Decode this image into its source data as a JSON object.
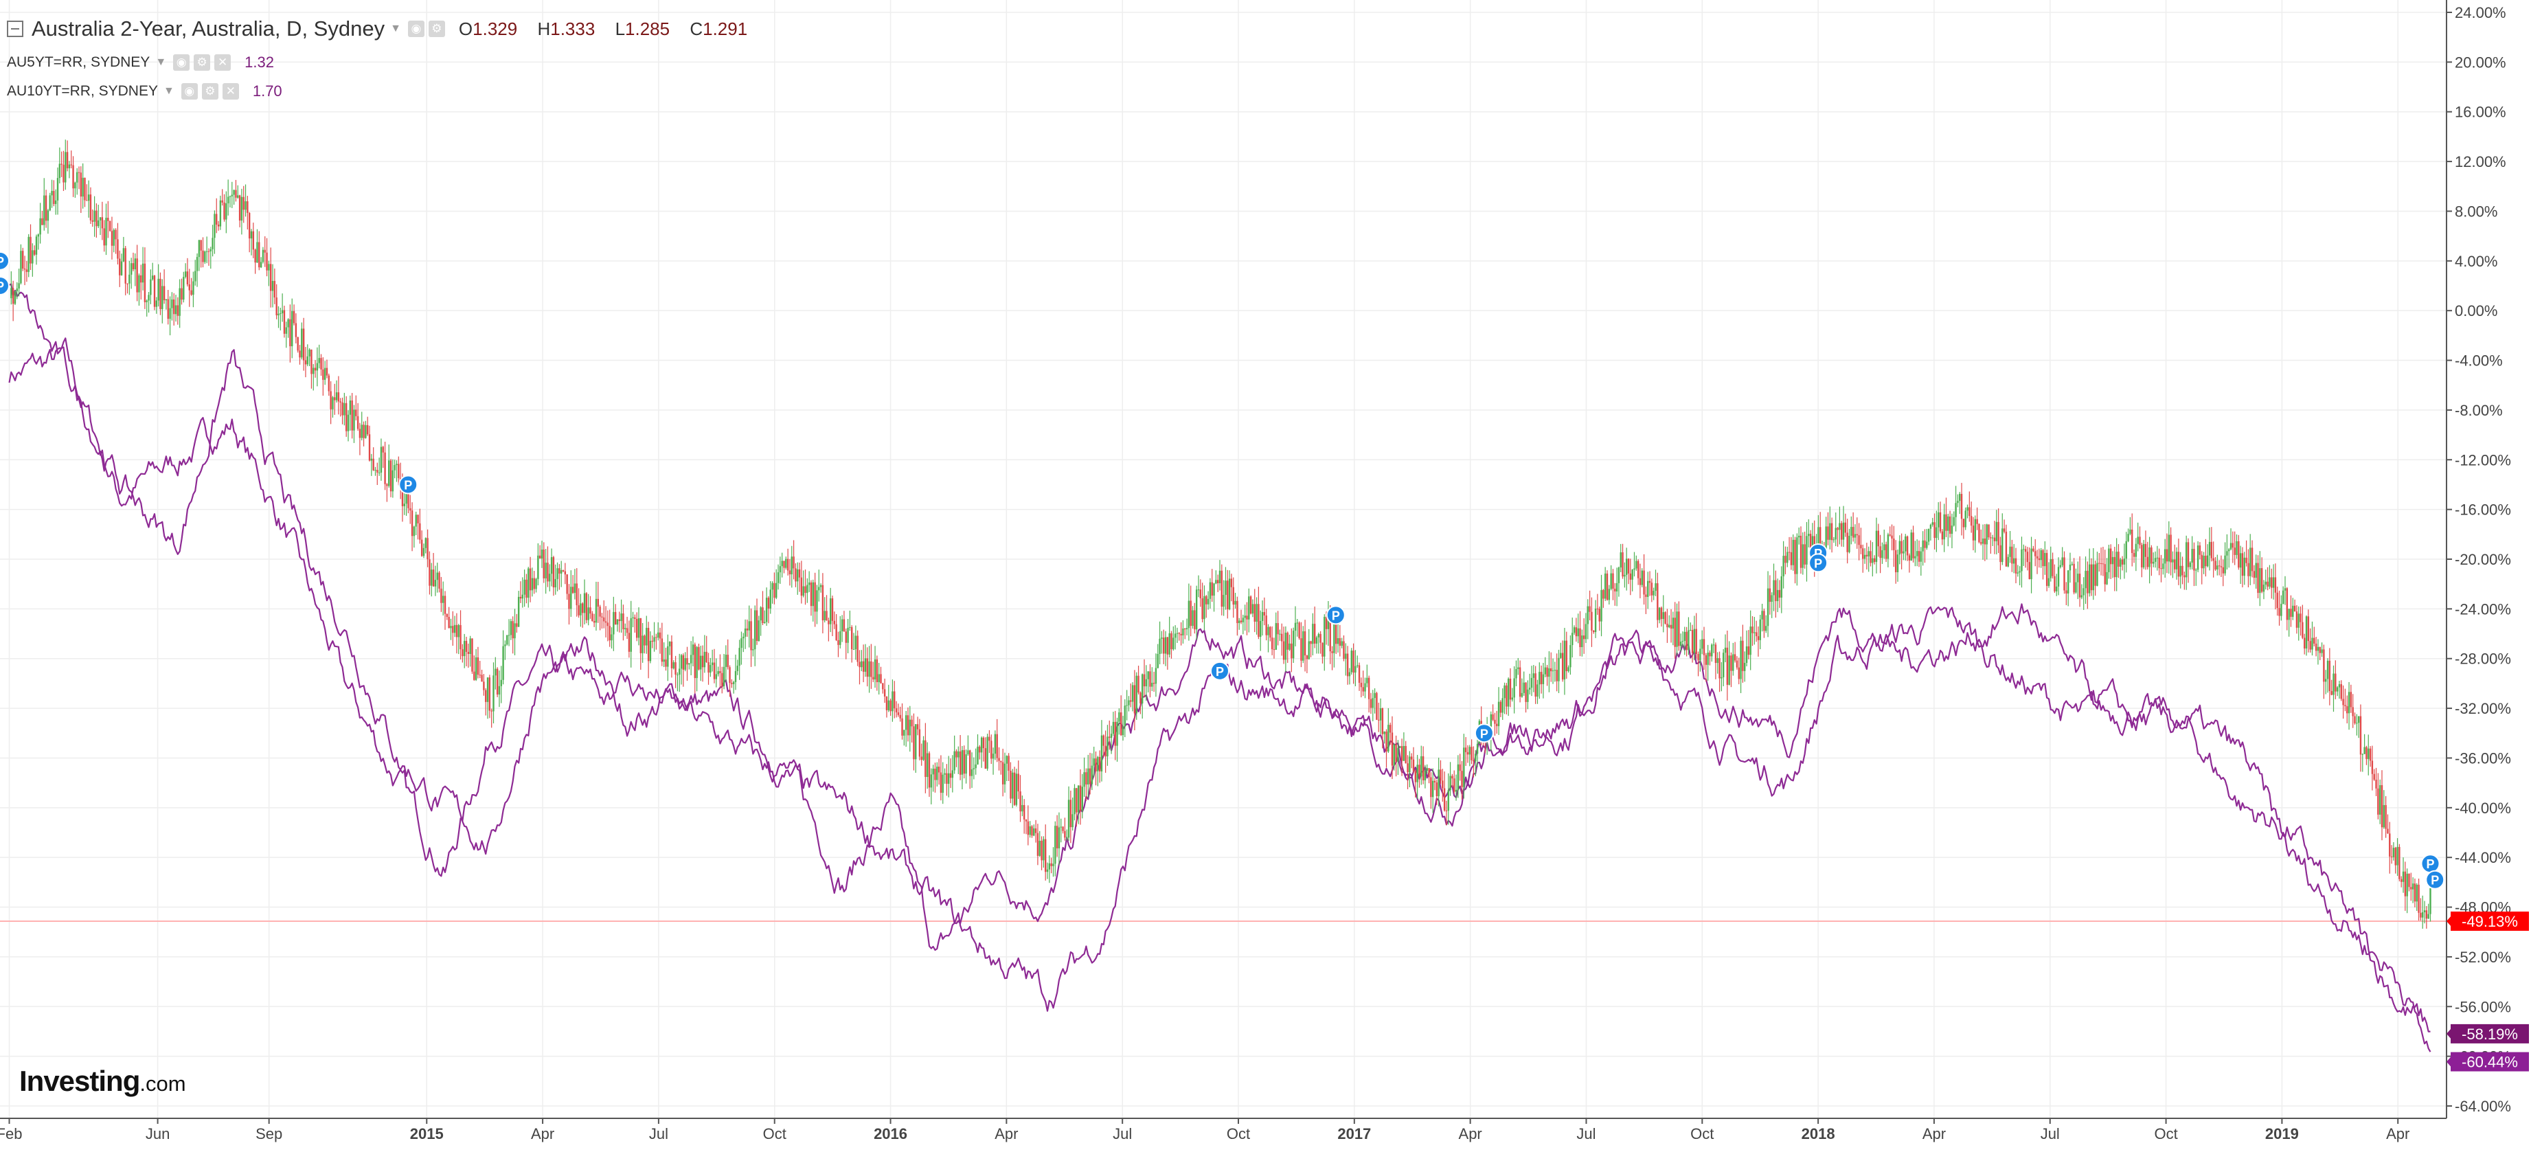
{
  "header": {
    "title": "Australia 2-Year, Australia, D, Sydney",
    "ohlc": [
      {
        "label": "O",
        "value": "1.329"
      },
      {
        "label": "H",
        "value": "1.333"
      },
      {
        "label": "L",
        "value": "1.285"
      },
      {
        "label": "C",
        "value": "1.291"
      }
    ],
    "series": [
      {
        "name": "AU5YT=RR, SYDNEY",
        "value": "1.32",
        "color": "#7b1c7b"
      },
      {
        "name": "AU10YT=RR, SYDNEY",
        "value": "1.70",
        "color": "#7b1c7b"
      }
    ]
  },
  "logo": {
    "brand": "Investing",
    "suffix": ".com"
  },
  "colors": {
    "up_candle": "#4caf50",
    "down_candle": "#e04848",
    "compare_line": "#8e2a94",
    "last_price_line": "#ffb2b2",
    "last_price_badge": "#ff0000",
    "compare_badge_1": "#7a1570",
    "compare_badge_2": "#8d1f96",
    "marker": "#1e88e5",
    "grid": "#eeeeee",
    "axis": "#555555"
  },
  "chart_data": {
    "type": "line",
    "x_ticks": [
      "Feb",
      "Jun",
      "Sep",
      "2015",
      "Apr",
      "Jul",
      "Oct",
      "2016",
      "Apr",
      "Jul",
      "Oct",
      "2017",
      "Apr",
      "Jul",
      "Oct",
      "2018",
      "Apr",
      "Jul",
      "Oct",
      "2019",
      "Apr"
    ],
    "x_ticks_bold": [
      "2015",
      "2016",
      "2017",
      "2018",
      "2019"
    ],
    "y_ticks": [
      "24.00%",
      "20.00%",
      "16.00%",
      "12.00%",
      "8.00%",
      "4.00%",
      "0.00%",
      "-4.00%",
      "-8.00%",
      "-12.00%",
      "-16.00%",
      "-20.00%",
      "-24.00%",
      "-28.00%",
      "-32.00%",
      "-36.00%",
      "-40.00%",
      "-44.00%",
      "-48.00%",
      "-52.00%",
      "-56.00%",
      "-60.00%",
      "-64.00%"
    ],
    "ylim": [
      -66,
      25
    ],
    "y_unit": "%",
    "grid": true,
    "series": [
      {
        "name": "Australia 2-Year",
        "style": "candlestick",
        "x": [
          2014.1,
          2014.22,
          2014.34,
          2014.46,
          2014.58,
          2014.7,
          2014.82,
          2014.94,
          2015.04,
          2015.14,
          2015.24,
          2015.34,
          2015.44,
          2015.54,
          2015.66,
          2015.78,
          2015.9,
          2016.0,
          2016.1,
          2016.22,
          2016.34,
          2016.46,
          2016.58,
          2016.7,
          2016.84,
          2016.96,
          2017.08,
          2017.2,
          2017.32,
          2017.46,
          2017.58,
          2017.7,
          2017.82,
          2017.94,
          2018.04,
          2018.18,
          2018.3,
          2018.44,
          2018.56,
          2018.68,
          2018.8,
          2018.92,
          2019.02,
          2019.16,
          2019.26,
          2019.32
        ],
        "values": [
          1,
          12,
          4,
          0,
          10,
          -1,
          -8,
          -14,
          -24,
          -31,
          -20,
          -24,
          -26,
          -28,
          -29,
          -20,
          -26,
          -31,
          -38,
          -35,
          -44,
          -35,
          -28,
          -22,
          -27,
          -26,
          -35,
          -39,
          -31,
          -28,
          -20,
          -26,
          -29,
          -20,
          -18,
          -20,
          -16,
          -20,
          -22,
          -19,
          -20,
          -20,
          -24,
          -33,
          -46,
          -48
        ],
        "last": -49.13,
        "last_label": "-49.13%"
      },
      {
        "name": "AU5YT=RR, SYDNEY",
        "style": "line",
        "x": [
          2014.1,
          2014.22,
          2014.34,
          2014.46,
          2014.58,
          2014.7,
          2014.82,
          2014.94,
          2015.04,
          2015.14,
          2015.24,
          2015.34,
          2015.44,
          2015.54,
          2015.66,
          2015.78,
          2015.9,
          2016.0,
          2016.1,
          2016.22,
          2016.34,
          2016.46,
          2016.58,
          2016.7,
          2016.84,
          2016.96,
          2017.08,
          2017.2,
          2017.32,
          2017.46,
          2017.58,
          2017.7,
          2017.82,
          2017.94,
          2018.04,
          2018.18,
          2018.3,
          2018.44,
          2018.56,
          2018.68,
          2018.8,
          2018.92,
          2019.02,
          2019.16,
          2019.26,
          2019.32
        ],
        "values": [
          -5,
          -4,
          -15,
          -12,
          -9,
          -18,
          -30,
          -38,
          -45,
          -34,
          -29,
          -30,
          -33,
          -31,
          -32,
          -37,
          -46,
          -40,
          -52,
          -45,
          -48,
          -36,
          -31,
          -26,
          -30,
          -32,
          -36,
          -40,
          -34,
          -34,
          -26,
          -30,
          -36,
          -38,
          -28,
          -26,
          -25,
          -30,
          -33,
          -32,
          -34,
          -40,
          -42,
          -50,
          -56,
          -58
        ],
        "last": -58.19,
        "last_label": "-58.19%"
      },
      {
        "name": "AU10YT=RR, SYDNEY",
        "style": "line",
        "x": [
          2014.1,
          2014.22,
          2014.34,
          2014.46,
          2014.58,
          2014.7,
          2014.82,
          2014.94,
          2015.04,
          2015.14,
          2015.24,
          2015.34,
          2015.44,
          2015.54,
          2015.66,
          2015.78,
          2015.9,
          2016.0,
          2016.1,
          2016.22,
          2016.34,
          2016.46,
          2016.58,
          2016.7,
          2016.84,
          2016.96,
          2017.08,
          2017.2,
          2017.32,
          2017.46,
          2017.58,
          2017.7,
          2017.82,
          2017.94,
          2018.04,
          2018.18,
          2018.3,
          2018.44,
          2018.56,
          2018.68,
          2018.8,
          2018.92,
          2019.02,
          2019.16,
          2019.26,
          2019.32
        ],
        "values": [
          2,
          -5,
          -14,
          -19,
          -4,
          -16,
          -25,
          -36,
          -40,
          -43,
          -30,
          -28,
          -30,
          -32,
          -35,
          -38,
          -40,
          -44,
          -48,
          -52,
          -55,
          -50,
          -36,
          -30,
          -31,
          -32,
          -36,
          -40,
          -34,
          -33,
          -28,
          -28,
          -32,
          -34,
          -24,
          -28,
          -27,
          -24,
          -30,
          -33,
          -33,
          -36,
          -44,
          -50,
          -54,
          -60
        ],
        "last": -60.44,
        "last_label": "-60.44%"
      }
    ],
    "markers": [
      {
        "x": 2014.08,
        "y": 4,
        "label": "P"
      },
      {
        "x": 2014.08,
        "y": 2,
        "label": "P"
      },
      {
        "x": 2014.96,
        "y": -14,
        "label": "P"
      },
      {
        "x": 2016.71,
        "y": -29,
        "label": "P"
      },
      {
        "x": 2016.96,
        "y": -24.5,
        "label": "P"
      },
      {
        "x": 2017.28,
        "y": -34,
        "label": "P"
      },
      {
        "x": 2018.0,
        "y": -19.5,
        "label": "P"
      },
      {
        "x": 2018.0,
        "y": -20.3,
        "label": "P"
      },
      {
        "x": 2019.32,
        "y": -44.5,
        "label": "P"
      },
      {
        "x": 2019.33,
        "y": -45.8,
        "label": "P"
      }
    ]
  }
}
